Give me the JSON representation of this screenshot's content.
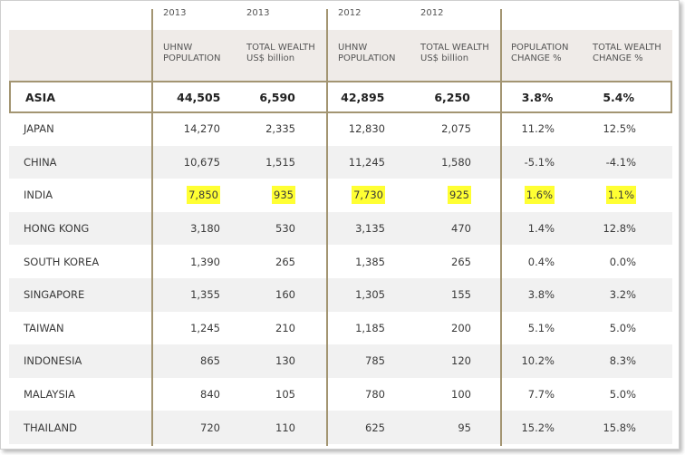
{
  "header": {
    "years": [
      "2013",
      "2013",
      "2012",
      "2012"
    ],
    "columns": [
      [
        "UHNW",
        "POPULATION"
      ],
      [
        "TOTAL WEALTH",
        "US$ billion"
      ],
      [
        "UHNW",
        "POPULATION"
      ],
      [
        "TOTAL WEALTH",
        "US$ billion"
      ],
      [
        "POPULATION",
        "CHANGE %"
      ],
      [
        "TOTAL WEALTH",
        "CHANGE %"
      ]
    ]
  },
  "total": [
    "ASIA",
    "44,505",
    "6,590",
    "42,895",
    "6,250",
    "3.8%",
    "5.4%"
  ],
  "rows": [
    [
      "JAPAN",
      "14,270",
      "2,335",
      "12,830",
      "2,075",
      "11.2%",
      "12.5%"
    ],
    [
      "CHINA",
      "10,675",
      "1,515",
      "11,245",
      "1,580",
      "-5.1%",
      "-4.1%"
    ],
    [
      "INDIA",
      "7,850",
      "935",
      "7,730",
      "925",
      "1.6%",
      "1.1%"
    ],
    [
      "HONG KONG",
      "3,180",
      "530",
      "3,135",
      "470",
      "1.4%",
      "12.8%"
    ],
    [
      "SOUTH KOREA",
      "1,390",
      "265",
      "1,385",
      "265",
      "0.4%",
      "0.0%"
    ],
    [
      "SINGAPORE",
      "1,355",
      "160",
      "1,305",
      "155",
      "3.8%",
      "3.2%"
    ],
    [
      "TAIWAN",
      "1,245",
      "210",
      "1,185",
      "200",
      "5.1%",
      "5.0%"
    ],
    [
      "INDONESIA",
      "865",
      "130",
      "785",
      "120",
      "10.2%",
      "8.3%"
    ],
    [
      "MALAYSIA",
      "840",
      "105",
      "780",
      "100",
      "7.7%",
      "5.0%"
    ],
    [
      "THAILAND",
      "720",
      "110",
      "625",
      "95",
      "15.2%",
      "15.8%"
    ]
  ],
  "highlighted_row": "INDIA",
  "colors": {
    "accent": "#a39572",
    "highlight": "#ffff33",
    "header_band": "#efebe8"
  }
}
